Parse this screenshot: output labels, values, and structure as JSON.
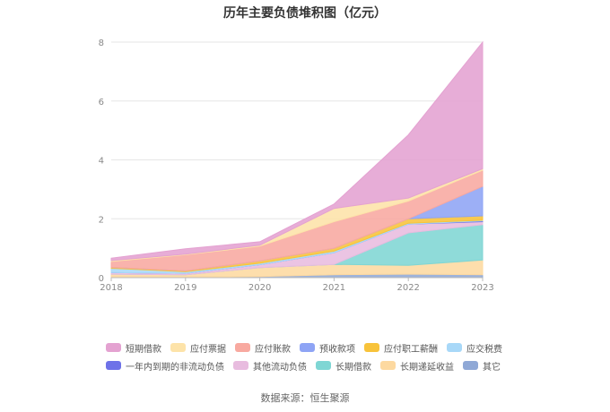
{
  "title": "历年主要负债堆积图（亿元）",
  "source": "数据来源：恒生聚源",
  "chart_data": {
    "type": "area",
    "stacked": true,
    "categories": [
      "2018",
      "2019",
      "2020",
      "2021",
      "2022",
      "2023"
    ],
    "ylim": [
      0,
      8
    ],
    "yticks": [
      "0",
      "2",
      "4",
      "6",
      "8"
    ],
    "grid": true,
    "legend_position": "bottom",
    "series": [
      {
        "name": "其它",
        "color": "#8fa8d6",
        "values": [
          0.02,
          0.02,
          0.04,
          0.1,
          0.12,
          0.1
        ]
      },
      {
        "name": "长期递延收益",
        "color": "#fdd9a0",
        "values": [
          0.1,
          0.08,
          0.3,
          0.35,
          0.3,
          0.5
        ]
      },
      {
        "name": "长期借款",
        "color": "#7fd6d4",
        "values": [
          0.0,
          0.0,
          0.0,
          0.0,
          1.1,
          1.2
        ]
      },
      {
        "name": "其他流动负债",
        "color": "#e8bcdf",
        "values": [
          0.05,
          0.05,
          0.1,
          0.4,
          0.3,
          0.1
        ]
      },
      {
        "name": "一年内到期的非流动负债",
        "color": "#6e72e8",
        "values": [
          0.0,
          0.0,
          0.0,
          0.0,
          0.0,
          0.03
        ]
      },
      {
        "name": "应交税费",
        "color": "#a8d8f8",
        "values": [
          0.15,
          0.05,
          0.05,
          0.05,
          0.03,
          0.02
        ]
      },
      {
        "name": "应付职工薪酬",
        "color": "#f8c33a",
        "values": [
          0.03,
          0.03,
          0.08,
          0.1,
          0.15,
          0.15
        ]
      },
      {
        "name": "预收款项",
        "color": "#8ea4f5",
        "values": [
          0.0,
          0.0,
          0.0,
          0.0,
          0.0,
          1.0
        ]
      },
      {
        "name": "应付账款",
        "color": "#f8a9a0",
        "values": [
          0.2,
          0.55,
          0.5,
          0.9,
          0.6,
          0.55
        ]
      },
      {
        "name": "应付票据",
        "color": "#fde3a9",
        "values": [
          0.03,
          0.02,
          0.03,
          0.45,
          0.1,
          0.05
        ]
      },
      {
        "name": "短期借款",
        "color": "#e4a2d1",
        "values": [
          0.08,
          0.18,
          0.12,
          0.15,
          2.15,
          4.3
        ]
      }
    ]
  },
  "legend": {
    "rows": [
      [
        {
          "label": "短期借款",
          "color": "#e4a2d1"
        },
        {
          "label": "应付票据",
          "color": "#fde3a9"
        },
        {
          "label": "应付账款",
          "color": "#f8a9a0"
        },
        {
          "label": "预收款项",
          "color": "#8ea4f5"
        },
        {
          "label": "应付职工薪酬",
          "color": "#f8c33a"
        },
        {
          "label": "应交税费",
          "color": "#a8d8f8"
        }
      ],
      [
        {
          "label": "一年内到期的非流动负债",
          "color": "#6e72e8"
        },
        {
          "label": "其他流动负债",
          "color": "#e8bcdf"
        },
        {
          "label": "长期借款",
          "color": "#7fd6d4"
        },
        {
          "label": "长期递延收益",
          "color": "#fdd9a0"
        },
        {
          "label": "其它",
          "color": "#8fa8d6"
        }
      ]
    ]
  }
}
